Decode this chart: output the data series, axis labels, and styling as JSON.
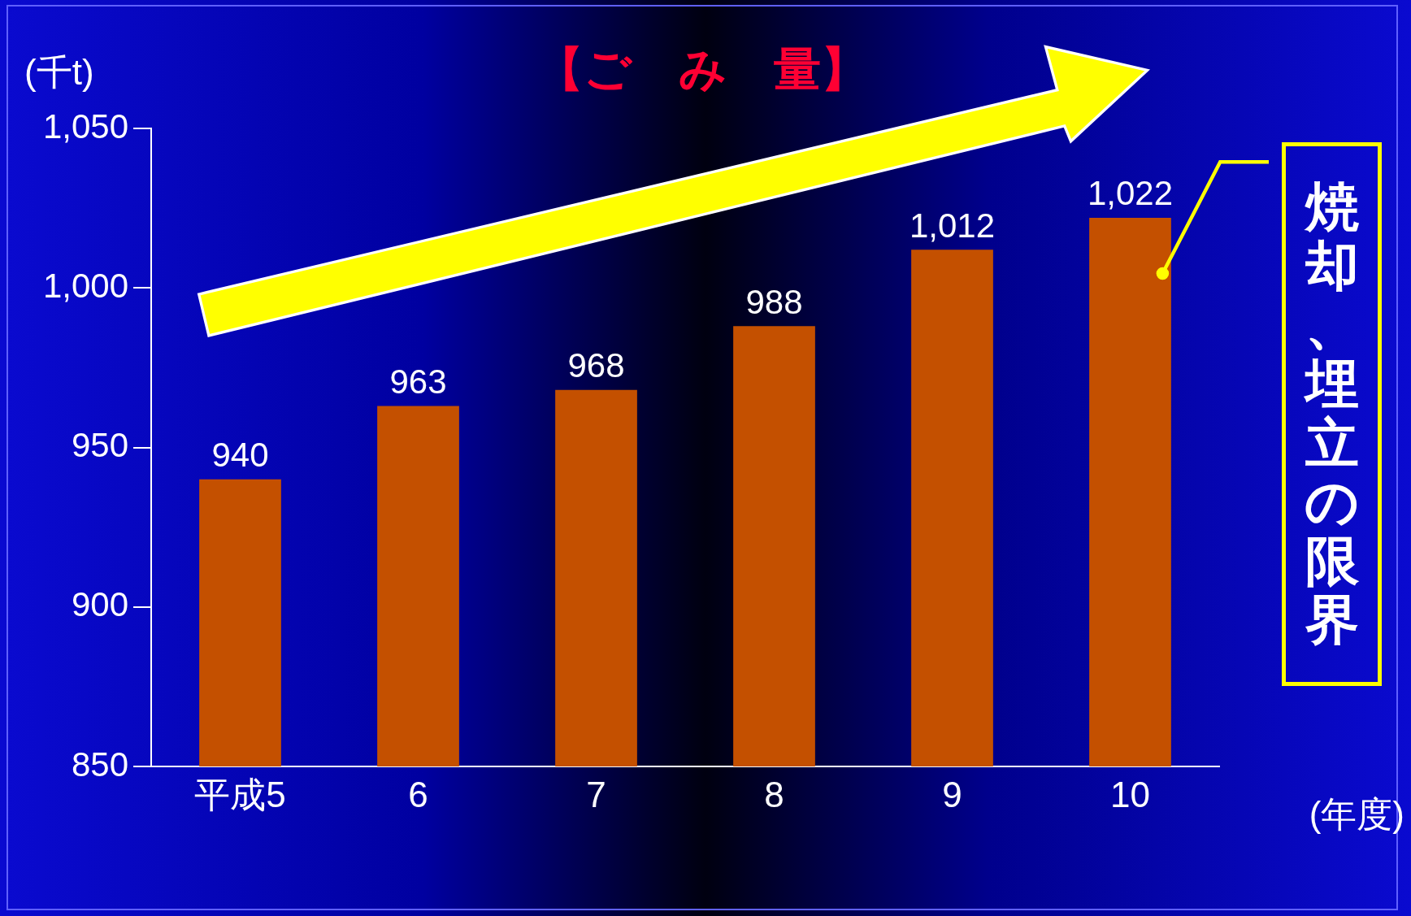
{
  "chart_data": {
    "type": "bar",
    "title": "【ご　み　量】",
    "ylabel": "(千t)",
    "xlabel": "(年度)",
    "categories": [
      "平成5",
      "6",
      "7",
      "8",
      "9",
      "10"
    ],
    "values": [
      940,
      963,
      968,
      988,
      1012,
      1022
    ],
    "value_labels": [
      "940",
      "963",
      "968",
      "988",
      "1,012",
      "1,022"
    ],
    "color": "#c45000",
    "ylim": [
      850,
      1050
    ],
    "yticks": [
      850,
      900,
      950,
      {
        "value": 1000,
        "label": "1,000"
      },
      {
        "value": 1050,
        "label": "1,050"
      }
    ],
    "grid": false,
    "legend": false,
    "annotations": [
      "焼却、埋立の限界"
    ]
  }
}
